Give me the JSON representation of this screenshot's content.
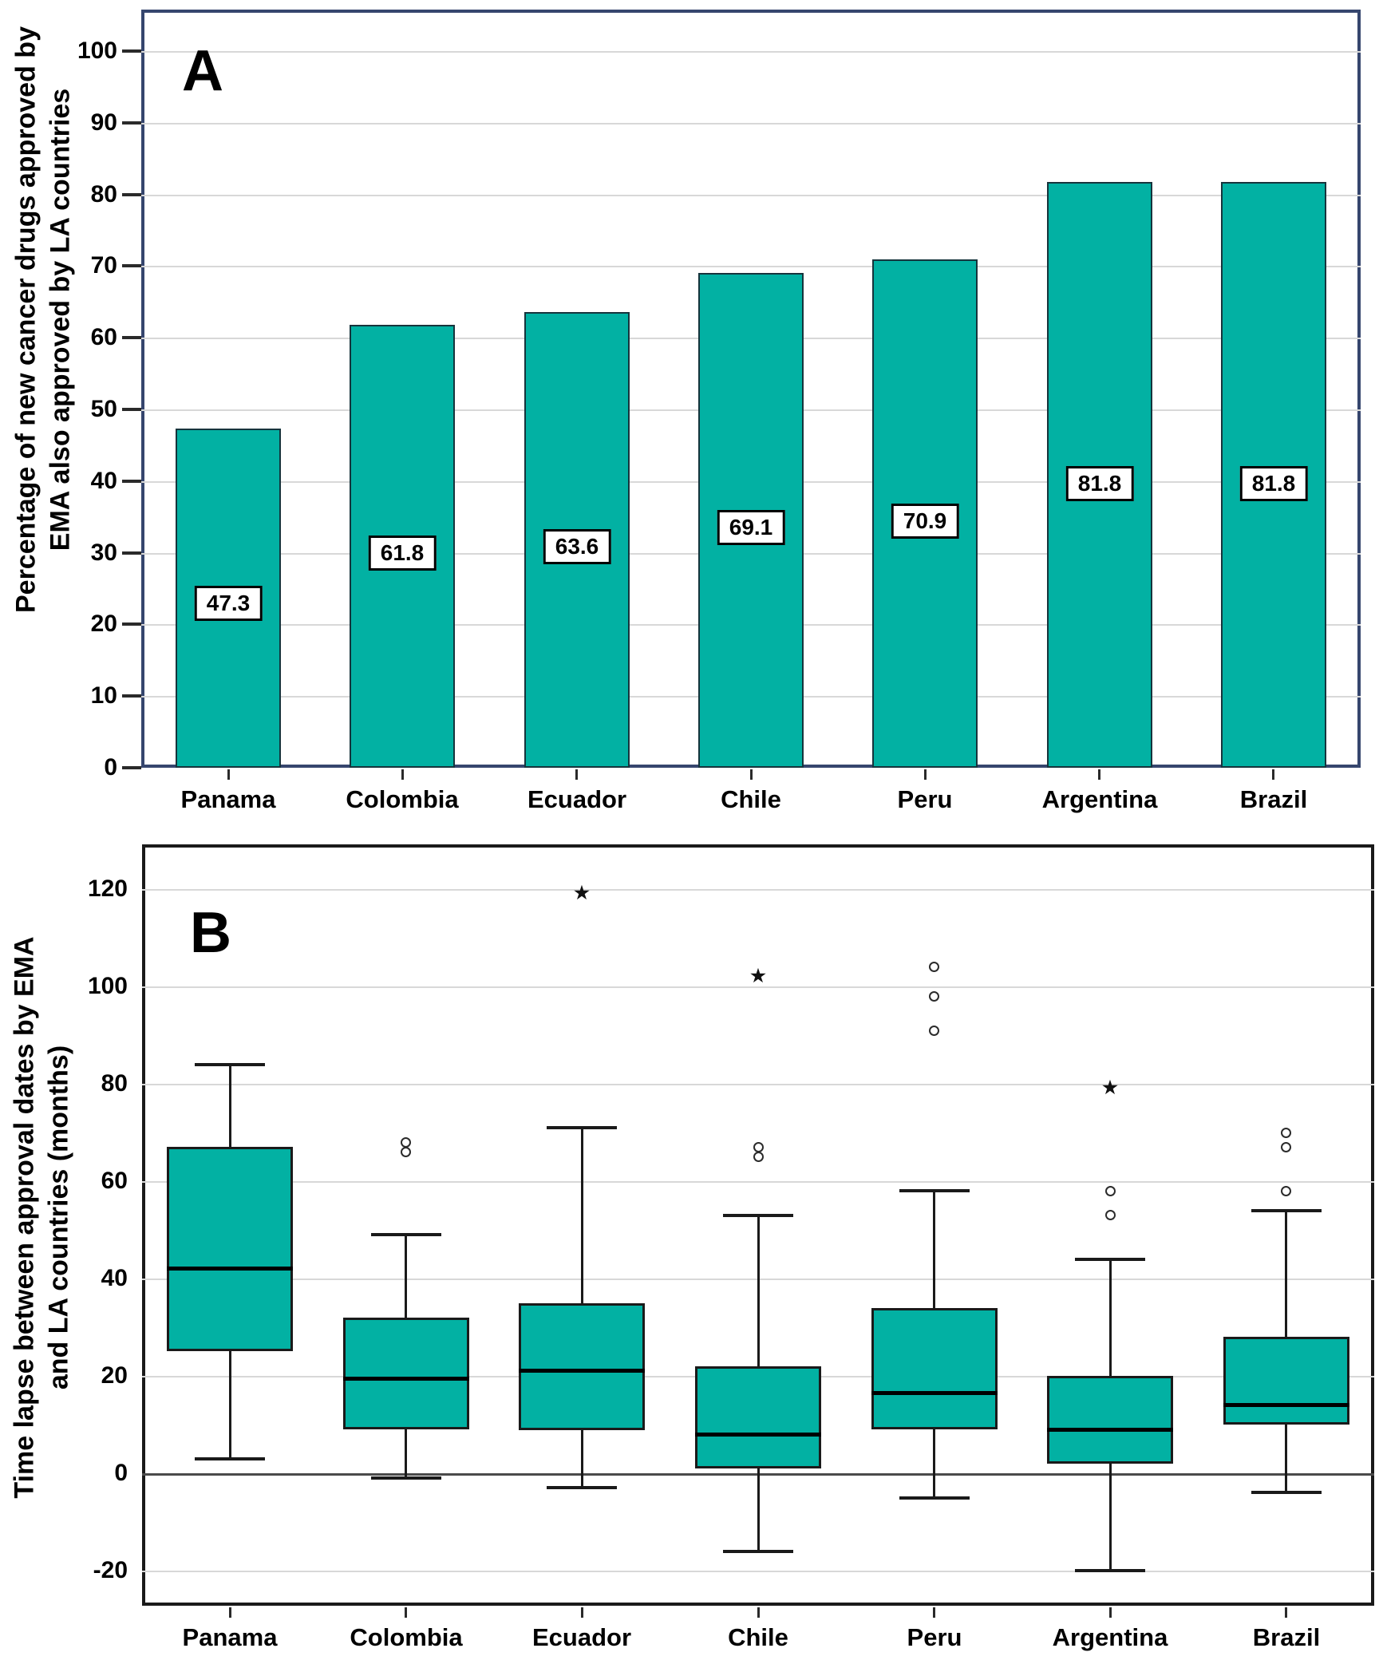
{
  "colors": {
    "teal_fill": "#02b1a3",
    "panel_a_border": "#36466e",
    "panel_b_border": "#1a1a1a",
    "gridline": "#d8d8d8",
    "zero_line": "#4a4a4a"
  },
  "chart_data": [
    {
      "type": "bar",
      "panel_letter": "A",
      "ylabel": "Percentage of new cancer drugs approved by EMA also approved by LA countries",
      "ylabel_lines": [
        "Percentage of new cancer drugs approved by",
        "EMA also approved by LA countries"
      ],
      "categories": [
        "Panama",
        "Colombia",
        "Ecuador",
        "Chile",
        "Peru",
        "Argentina",
        "Brazil"
      ],
      "values": [
        47.3,
        61.8,
        63.6,
        69.1,
        70.9,
        81.8,
        81.8
      ],
      "bar_labels": [
        "47.3",
        "61.8",
        "63.6",
        "69.1",
        "70.9",
        "81.8",
        "81.8"
      ],
      "yticks": [
        0,
        10,
        20,
        30,
        40,
        50,
        60,
        70,
        80,
        90,
        100
      ],
      "ylim": [
        0,
        105.8
      ],
      "grid": true,
      "legend": "none"
    },
    {
      "type": "boxplot",
      "panel_letter": "B",
      "ylabel": "Time lapse between approval dates by EMA and LA countries (months)",
      "ylabel_lines": [
        "Time lapse between approval dates by EMA",
        "and LA countries (months)"
      ],
      "categories": [
        "Panama",
        "Colombia",
        "Ecuador",
        "Chile",
        "Peru",
        "Argentina",
        "Brazil"
      ],
      "yticks": [
        120,
        100,
        80,
        60,
        40,
        20,
        0,
        -20
      ],
      "ylim": [
        -27.2,
        129.2
      ],
      "zero_line": true,
      "grid": true,
      "series": [
        {
          "name": "Panama",
          "whisker_low": 3,
          "q1": 25,
          "median": 42,
          "q3": 67,
          "whisker_high": 84,
          "outliers_circle": [],
          "outliers_star": []
        },
        {
          "name": "Colombia",
          "whisker_low": -1,
          "q1": 9,
          "median": 19.5,
          "q3": 32,
          "whisker_high": 49,
          "outliers_circle": [
            68,
            66
          ],
          "outliers_star": []
        },
        {
          "name": "Ecuador",
          "whisker_low": -3,
          "q1": 9,
          "median": 21,
          "q3": 35,
          "whisker_high": 71,
          "outliers_circle": [],
          "outliers_star": [
            119
          ]
        },
        {
          "name": "Chile",
          "whisker_low": -16,
          "q1": 1,
          "median": 8,
          "q3": 22,
          "whisker_high": 53,
          "outliers_circle": [
            67,
            65
          ],
          "outliers_star": [
            102
          ]
        },
        {
          "name": "Peru",
          "whisker_low": -5,
          "q1": 9,
          "median": 16.5,
          "q3": 34,
          "whisker_high": 58,
          "outliers_circle": [
            104,
            98,
            91
          ],
          "outliers_star": []
        },
        {
          "name": "Argentina",
          "whisker_low": -20,
          "q1": 2,
          "median": 9,
          "q3": 20,
          "whisker_high": 44,
          "outliers_circle": [
            58,
            53
          ],
          "outliers_star": [
            79
          ]
        },
        {
          "name": "Brazil",
          "whisker_low": -4,
          "q1": 10,
          "median": 14,
          "q3": 28,
          "whisker_high": 54,
          "outliers_circle": [
            70,
            67,
            58
          ],
          "outliers_star": []
        }
      ]
    }
  ]
}
